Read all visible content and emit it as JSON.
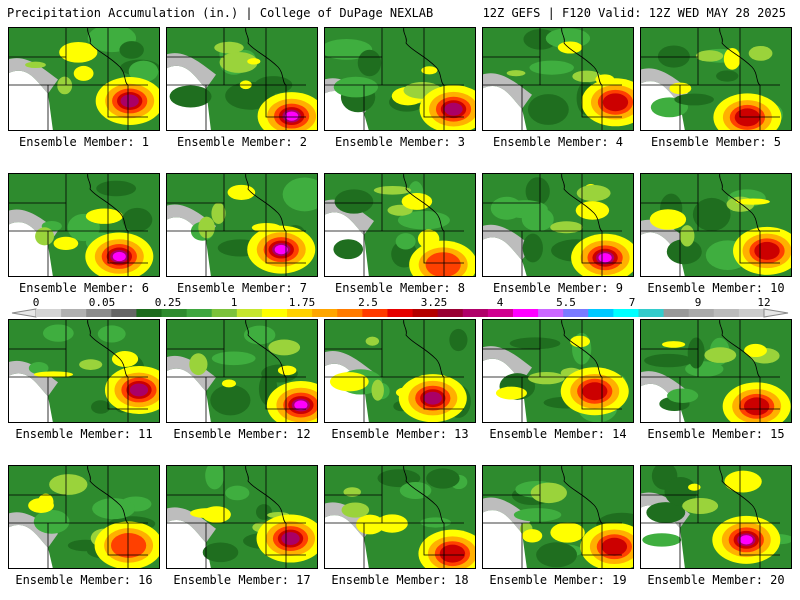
{
  "header": {
    "title_left": "Precipitation Accumulation (in.) | College of DuPage NEXLAB",
    "title_right": "12Z GEFS | F120 Valid: 12Z WED MAY 28 2025"
  },
  "panels": [
    {
      "label": "Ensemble Member: 1",
      "max_value": 5.5
    },
    {
      "label": "Ensemble Member: 2",
      "max_value": 7
    },
    {
      "label": "Ensemble Member: 3",
      "max_value": 5.5
    },
    {
      "label": "Ensemble Member: 4",
      "max_value": 4
    },
    {
      "label": "Ensemble Member: 5",
      "max_value": 4
    },
    {
      "label": "Ensemble Member: 6",
      "max_value": 7
    },
    {
      "label": "Ensemble Member: 7",
      "max_value": 7
    },
    {
      "label": "Ensemble Member: 8",
      "max_value": 3.25
    },
    {
      "label": "Ensemble Member: 9",
      "max_value": 7
    },
    {
      "label": "Ensemble Member: 10",
      "max_value": 4
    },
    {
      "label": "Ensemble Member: 11",
      "max_value": 5.5
    },
    {
      "label": "Ensemble Member: 12",
      "max_value": 7
    },
    {
      "label": "Ensemble Member: 13",
      "max_value": 5.5
    },
    {
      "label": "Ensemble Member: 14",
      "max_value": 4
    },
    {
      "label": "Ensemble Member: 15",
      "max_value": 4
    },
    {
      "label": "Ensemble Member: 16",
      "max_value": 3.25
    },
    {
      "label": "Ensemble Member: 17",
      "max_value": 5.5
    },
    {
      "label": "Ensemble Member: 18",
      "max_value": 4
    },
    {
      "label": "Ensemble Member: 19",
      "max_value": 4
    },
    {
      "label": "Ensemble Member: 20",
      "max_value": 7
    }
  ],
  "legend": {
    "labels": [
      "0",
      "0.05",
      "0.25",
      "1",
      "1.75",
      "2.5",
      "3.25",
      "4",
      "5.5",
      "7",
      "9",
      "12"
    ],
    "colors": [
      "#d3d3d3",
      "#b0b0b0",
      "#8c8c8c",
      "#666666",
      "#1c6b1c",
      "#2e8b2e",
      "#3fa63f",
      "#7cc23b",
      "#c6e62e",
      "#ffff00",
      "#ffd000",
      "#ffa500",
      "#ff7a00",
      "#ff3a00",
      "#e60000",
      "#b40000",
      "#990033",
      "#b0006a",
      "#d00090",
      "#ff00ff",
      "#cc66ff",
      "#7a7aff",
      "#00c8ff",
      "#00ffff",
      "#33cccc",
      "#999999",
      "#aaaaaa",
      "#bbbbbb",
      "#cccccc"
    ]
  }
}
